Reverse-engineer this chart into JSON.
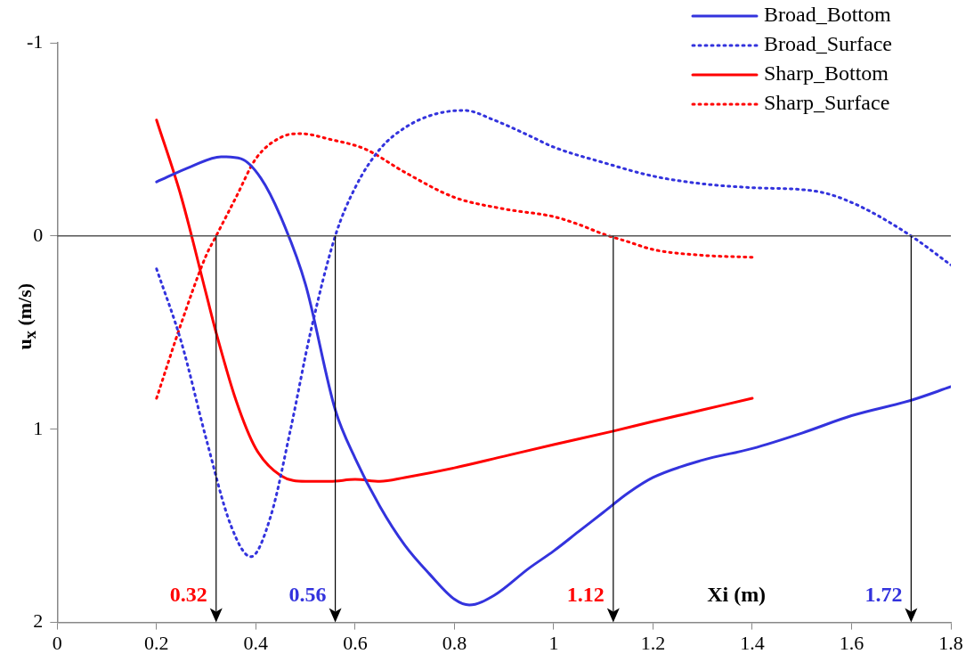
{
  "chart_data": {
    "type": "line",
    "xlabel": "Xi (m)",
    "ylabel": "u$_{x}$ (m/s)",
    "xlim": [
      0,
      1.8
    ],
    "xticks": [
      0,
      0.2,
      0.4,
      0.6,
      0.8,
      1,
      1.2,
      1.4,
      1.6,
      1.8
    ],
    "ylim": [
      2,
      -1
    ],
    "yticks": [
      -1,
      0,
      1,
      2
    ],
    "grid": false,
    "legend": "top right",
    "marker": "none",
    "ref_lines": [
      {
        "axis": "y",
        "value": 0,
        "color": "#555555"
      }
    ],
    "annotations": [
      {
        "text": "0.32",
        "x": 0.32,
        "y": 0
      },
      {
        "text": "0.56",
        "x": 0.56,
        "y": 0
      },
      {
        "text": "1.12",
        "x": 1.12,
        "y": 0
      },
      {
        "text": "1.72",
        "x": 1.72,
        "y": 0
      }
    ],
    "series": [
      {
        "name": "Broad_Bottom",
        "color": "#3333dd",
        "line_style": "solid",
        "x": [
          0.2,
          0.27,
          0.33,
          0.37,
          0.41,
          0.45,
          0.5,
          0.56,
          0.6,
          0.65,
          0.7,
          0.75,
          0.8,
          0.83,
          0.88,
          0.95,
          1.0,
          1.05,
          1.1,
          1.15,
          1.2,
          1.3,
          1.4,
          1.5,
          1.6,
          1.72,
          1.8
        ],
        "values": [
          -0.28,
          -0.36,
          -0.41,
          -0.4,
          -0.3,
          -0.1,
          0.25,
          0.9,
          1.15,
          1.4,
          1.6,
          1.75,
          1.88,
          1.91,
          1.86,
          1.72,
          1.63,
          1.53,
          1.43,
          1.33,
          1.25,
          1.16,
          1.1,
          1.02,
          0.93,
          0.85,
          0.78
        ]
      },
      {
        "name": "Broad_Surface",
        "color": "#3333dd",
        "line_style": "dotted",
        "x": [
          0.2,
          0.25,
          0.3,
          0.35,
          0.39,
          0.43,
          0.47,
          0.51,
          0.56,
          0.6,
          0.65,
          0.7,
          0.76,
          0.82,
          0.88,
          0.95,
          1.0,
          1.1,
          1.2,
          1.3,
          1.4,
          1.5,
          1.55,
          1.62,
          1.72,
          1.8
        ],
        "values": [
          0.17,
          0.55,
          1.05,
          1.5,
          1.66,
          1.45,
          1.0,
          0.5,
          0,
          -0.25,
          -0.45,
          -0.56,
          -0.63,
          -0.65,
          -0.6,
          -0.52,
          -0.46,
          -0.38,
          -0.31,
          -0.27,
          -0.25,
          -0.24,
          -0.22,
          -0.15,
          0,
          0.15
        ]
      },
      {
        "name": "Sharp_Bottom",
        "color": "#ff0000",
        "line_style": "solid",
        "x": [
          0.2,
          0.25,
          0.3,
          0.32,
          0.36,
          0.4,
          0.45,
          0.5,
          0.55,
          0.6,
          0.65,
          0.7,
          0.8,
          0.9,
          1.0,
          1.12,
          1.2,
          1.3,
          1.4
        ],
        "values": [
          -0.6,
          -0.2,
          0.3,
          0.5,
          0.85,
          1.1,
          1.24,
          1.27,
          1.27,
          1.26,
          1.27,
          1.25,
          1.2,
          1.14,
          1.08,
          1.01,
          0.96,
          0.9,
          0.84
        ]
      },
      {
        "name": "Sharp_Surface",
        "color": "#ff0000",
        "line_style": "dotted",
        "x": [
          0.2,
          0.25,
          0.3,
          0.32,
          0.36,
          0.4,
          0.45,
          0.49,
          0.55,
          0.62,
          0.7,
          0.8,
          0.9,
          1.0,
          1.05,
          1.1,
          1.15,
          1.2,
          1.3,
          1.4
        ],
        "values": [
          0.84,
          0.45,
          0.1,
          0,
          -0.2,
          -0.4,
          -0.51,
          -0.53,
          -0.5,
          -0.45,
          -0.33,
          -0.2,
          -0.14,
          -0.1,
          -0.06,
          -0.01,
          0.03,
          0.07,
          0.1,
          0.11
        ]
      }
    ]
  }
}
